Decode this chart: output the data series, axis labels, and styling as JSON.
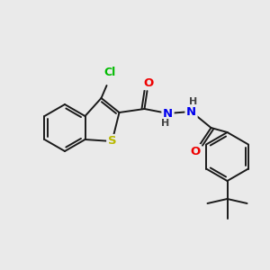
{
  "background_color": "#eaeaea",
  "bond_color": "#1a1a1a",
  "atom_colors": {
    "S": "#b8b800",
    "Cl": "#00bb00",
    "O": "#ee0000",
    "N": "#0000ee",
    "H": "#444444",
    "C": "#1a1a1a"
  },
  "figsize": [
    3.0,
    3.0
  ],
  "dpi": 100
}
